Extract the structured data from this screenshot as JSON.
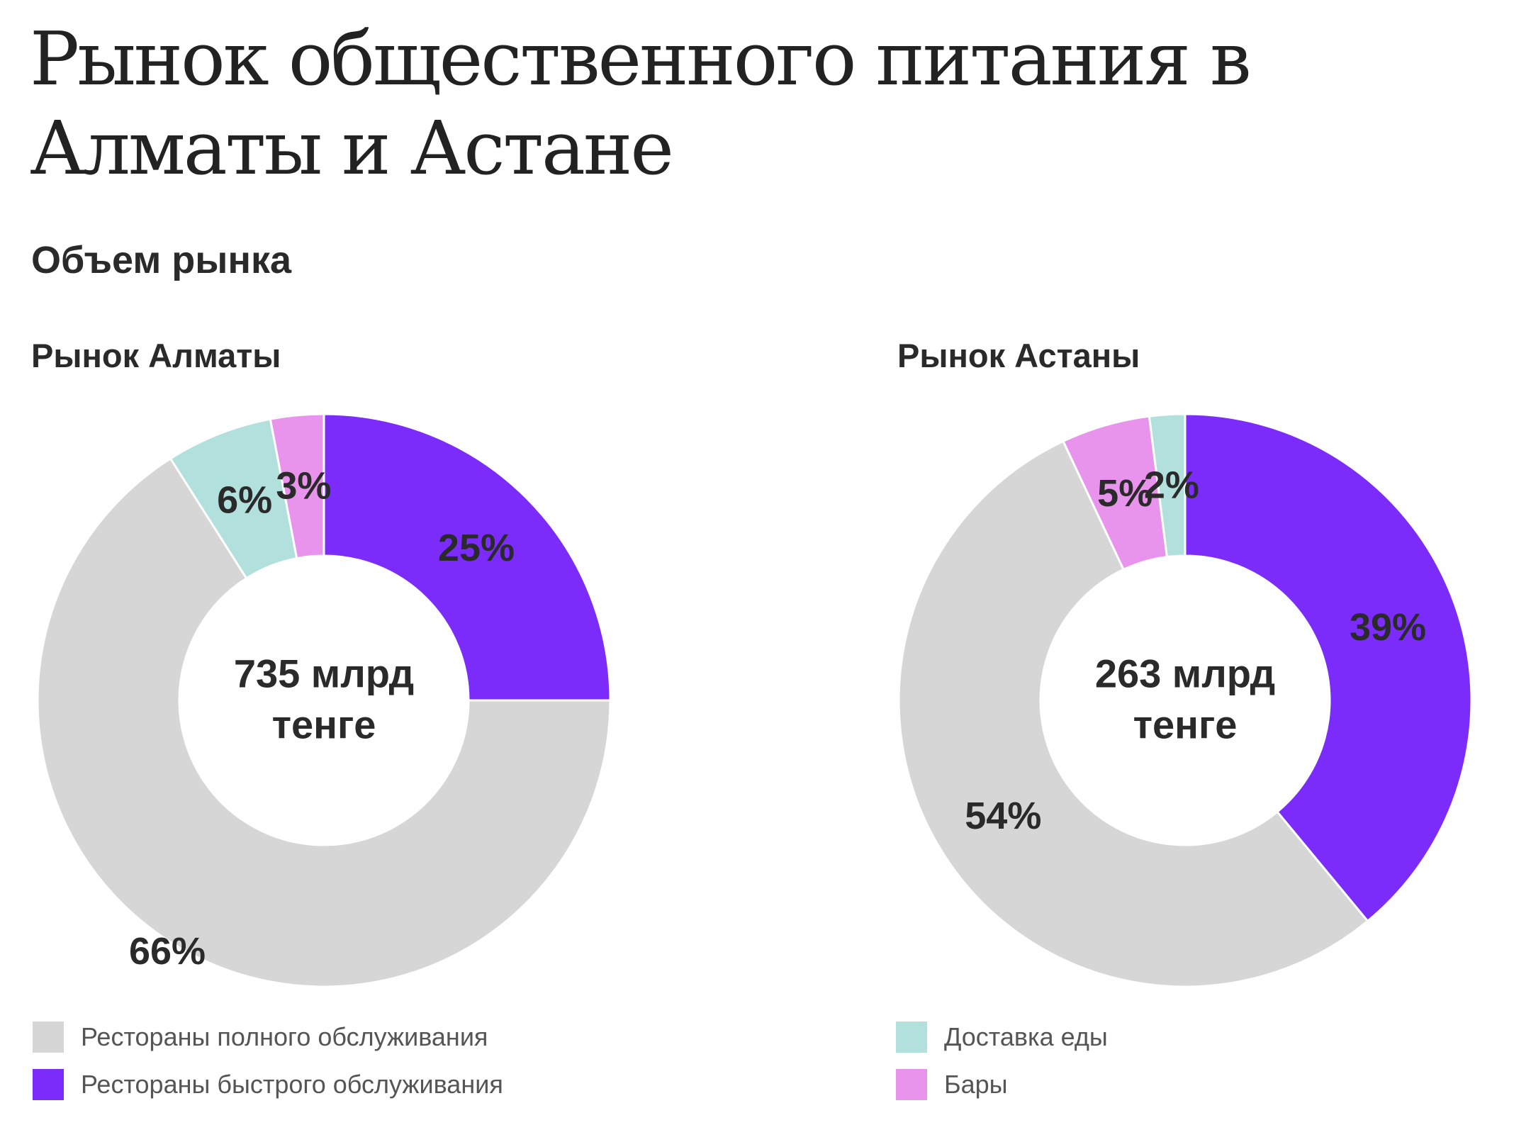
{
  "page": {
    "title": "Рынок общественного питания в Алматы и Астане",
    "subtitle": "Объем рынка"
  },
  "colors": {
    "full_service": "#d6d6d6",
    "fast_food": "#7b2cfb",
    "delivery": "#b2e0dc",
    "bars": "#e894ec",
    "label_text": "#2a2a2a",
    "separator": "#ffffff"
  },
  "legend": [
    {
      "label": "Рестораны полного обслуживания",
      "color": "#d6d6d6"
    },
    {
      "label": "Рестораны быстрого обслуживания",
      "color": "#7b2cfb"
    },
    {
      "label": "Доставка еды",
      "color": "#b2e0dc"
    },
    {
      "label": "Бары",
      "color": "#e894ec"
    }
  ],
  "chart_data": [
    {
      "type": "pie",
      "title": "Рынок Алматы",
      "center_label": [
        "735 млрд",
        "тенге"
      ],
      "categories": [
        "Рестораны быстрого обслуживания",
        "Рестораны полного обслуживания",
        "Доставка еды",
        "Бары"
      ],
      "values": [
        25,
        66,
        6,
        3
      ],
      "value_labels": [
        "25%",
        "66%",
        "6%",
        "3%"
      ],
      "colors": [
        "#7b2cfb",
        "#d6d6d6",
        "#b2e0dc",
        "#e894ec"
      ]
    },
    {
      "type": "pie",
      "title": "Рынок Астаны",
      "center_label": [
        "263 млрд",
        "тенге"
      ],
      "categories": [
        "Рестораны быстрого обслуживания",
        "Рестораны полного обслуживания",
        "Бары",
        "Доставка еды"
      ],
      "values": [
        39,
        54,
        5,
        2
      ],
      "value_labels": [
        "39%",
        "54%",
        "5%",
        "2%"
      ],
      "colors": [
        "#7b2cfb",
        "#d6d6d6",
        "#e894ec",
        "#b2e0dc"
      ]
    }
  ]
}
